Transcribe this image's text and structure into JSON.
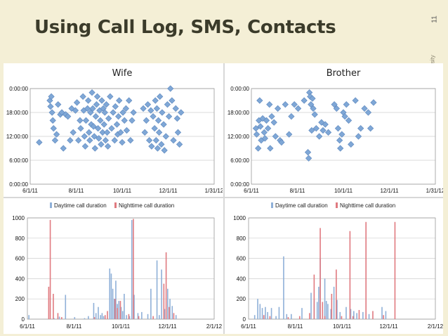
{
  "slide": {
    "title": "Using Call Log, SMS, Contacts",
    "page_number": "11",
    "side_text": "on University"
  },
  "colors": {
    "background": "#f4efd6",
    "point": "#7fa7d6",
    "point_edge": "#5b86bd",
    "daytime": "#8fb0d8",
    "nighttime": "#e07a80",
    "grid": "#cfcfcf"
  },
  "chart_data": [
    {
      "id": "wife-scatter",
      "type": "scatter",
      "title": "Wife",
      "x_ticks": [
        "6/1/11",
        "8/1/11",
        "10/1/11",
        "12/1/11",
        "1/31/12"
      ],
      "xlim": [
        0,
        244
      ],
      "y_ticks": [
        "0:00:00",
        "18:00:00",
        "12:00:00",
        "6:00:00",
        "0:00:00"
      ],
      "ylim_hours": [
        0,
        24
      ],
      "y_axis_inverted_label_top": true,
      "grid": true,
      "points": [
        [
          12,
          10.5
        ],
        [
          26,
          21
        ],
        [
          27,
          19.5
        ],
        [
          28,
          22
        ],
        [
          29,
          18
        ],
        [
          30,
          16
        ],
        [
          31,
          14
        ],
        [
          33,
          11
        ],
        [
          35,
          12.5
        ],
        [
          37,
          20
        ],
        [
          40,
          17.5
        ],
        [
          42,
          18
        ],
        [
          44,
          9
        ],
        [
          47,
          17.5
        ],
        [
          50,
          17
        ],
        [
          53,
          11
        ],
        [
          55,
          19
        ],
        [
          57,
          13
        ],
        [
          60,
          18.5
        ],
        [
          62,
          20.5
        ],
        [
          64,
          11
        ],
        [
          66,
          16
        ],
        [
          67,
          14
        ],
        [
          70,
          22
        ],
        [
          71,
          18.5
        ],
        [
          72,
          12
        ],
        [
          73,
          9.5
        ],
        [
          74,
          16
        ],
        [
          76,
          19
        ],
        [
          77,
          21
        ],
        [
          78,
          13
        ],
        [
          79,
          11
        ],
        [
          80,
          18
        ],
        [
          81,
          15
        ],
        [
          82,
          23
        ],
        [
          83,
          19
        ],
        [
          84,
          14.5
        ],
        [
          85,
          12
        ],
        [
          86,
          9
        ],
        [
          87,
          17
        ],
        [
          88,
          20
        ],
        [
          89,
          22
        ],
        [
          90,
          14
        ],
        [
          91,
          11.5
        ],
        [
          92,
          18.5
        ],
        [
          93,
          16
        ],
        [
          94,
          10
        ],
        [
          95,
          21
        ],
        [
          96,
          13
        ],
        [
          97,
          19
        ],
        [
          98,
          15
        ],
        [
          99,
          18
        ],
        [
          100,
          11
        ],
        [
          101,
          20
        ],
        [
          102,
          13
        ],
        [
          103,
          9.5
        ],
        [
          104,
          16.5
        ],
        [
          106,
          22
        ],
        [
          108,
          14
        ],
        [
          110,
          18
        ],
        [
          112,
          11
        ],
        [
          113,
          19.5
        ],
        [
          115,
          15
        ],
        [
          116,
          12.5
        ],
        [
          117,
          17
        ],
        [
          118,
          21
        ],
        [
          120,
          13
        ],
        [
          122,
          10.5
        ],
        [
          123,
          18
        ],
        [
          125,
          16
        ],
        [
          127,
          19
        ],
        [
          128,
          13.5
        ],
        [
          131,
          21
        ],
        [
          133,
          11
        ],
        [
          135,
          16
        ],
        [
          137,
          18
        ],
        [
          150,
          19
        ],
        [
          152,
          13
        ],
        [
          154,
          16
        ],
        [
          156,
          20
        ],
        [
          158,
          11
        ],
        [
          160,
          18.5
        ],
        [
          161,
          9.5
        ],
        [
          163,
          17
        ],
        [
          165,
          14
        ],
        [
          166,
          21
        ],
        [
          167,
          11
        ],
        [
          168,
          19
        ],
        [
          169,
          9
        ],
        [
          170,
          16
        ],
        [
          171,
          13
        ],
        [
          172,
          22
        ],
        [
          174,
          10
        ],
        [
          175,
          18
        ],
        [
          177,
          15
        ],
        [
          178,
          8.5
        ],
        [
          180,
          12
        ],
        [
          182,
          20
        ],
        [
          184,
          17
        ],
        [
          186,
          24
        ],
        [
          188,
          21
        ],
        [
          190,
          11
        ],
        [
          193,
          19
        ],
        [
          195,
          16.5
        ],
        [
          196,
          13
        ],
        [
          198,
          10
        ],
        [
          200,
          18
        ]
      ]
    },
    {
      "id": "brother-scatter",
      "type": "scatter",
      "title": "Brother",
      "x_ticks": [
        "6/1/11",
        "8/1/11",
        "10/1/11",
        "12/1/11",
        "1/31/12"
      ],
      "xlim": [
        0,
        244
      ],
      "y_ticks": [
        "0:00:00",
        "18:00:00",
        "12:00:00",
        "6:00:00",
        "0:00:00"
      ],
      "ylim_hours": [
        0,
        24
      ],
      "grid": true,
      "points": [
        [
          6,
          14
        ],
        [
          7,
          12.5
        ],
        [
          9,
          9
        ],
        [
          10,
          16
        ],
        [
          11,
          21
        ],
        [
          12,
          14.5
        ],
        [
          13,
          11
        ],
        [
          15,
          16.5
        ],
        [
          17,
          13
        ],
        [
          18,
          11.5
        ],
        [
          20,
          16
        ],
        [
          22,
          14
        ],
        [
          24,
          20
        ],
        [
          25,
          9
        ],
        [
          27,
          17
        ],
        [
          30,
          15.5
        ],
        [
          32,
          12
        ],
        [
          35,
          19
        ],
        [
          38,
          11
        ],
        [
          40,
          10.5
        ],
        [
          45,
          20
        ],
        [
          50,
          12.5
        ],
        [
          53,
          17
        ],
        [
          57,
          20
        ],
        [
          62,
          19
        ],
        [
          70,
          21
        ],
        [
          75,
          8
        ],
        [
          76,
          6.5
        ],
        [
          77,
          23
        ],
        [
          78,
          22
        ],
        [
          79,
          20
        ],
        [
          80,
          13.5
        ],
        [
          81,
          21.5
        ],
        [
          82,
          19
        ],
        [
          84,
          17.5
        ],
        [
          86,
          14
        ],
        [
          90,
          12
        ],
        [
          93,
          15.5
        ],
        [
          95,
          13.5
        ],
        [
          98,
          15
        ],
        [
          102,
          13
        ],
        [
          110,
          20
        ],
        [
          113,
          19
        ],
        [
          115,
          14
        ],
        [
          117,
          11
        ],
        [
          118,
          9
        ],
        [
          120,
          12.5
        ],
        [
          122,
          18
        ],
        [
          124,
          17
        ],
        [
          126,
          20
        ],
        [
          129,
          16
        ],
        [
          132,
          10
        ],
        [
          138,
          21
        ],
        [
          142,
          12
        ],
        [
          145,
          14
        ],
        [
          150,
          19
        ],
        [
          155,
          18
        ],
        [
          158,
          14
        ],
        [
          162,
          20.5
        ]
      ]
    },
    {
      "id": "wife-durations",
      "type": "bar",
      "legend": [
        "Daytime call duration",
        "Nighttime call duration"
      ],
      "x_ticks": [
        "6/1/11",
        "8/1/11",
        "10/1/11",
        "12/1/11",
        "2/1/12"
      ],
      "xlim": [
        0,
        245
      ],
      "ylim": [
        0,
        1000
      ],
      "y_ticks": [
        0,
        200,
        400,
        600,
        800,
        1000
      ],
      "grid": true,
      "series": [
        {
          "name": "Daytime call duration",
          "points": [
            [
              2,
              40
            ],
            [
              35,
              10
            ],
            [
              42,
              25
            ],
            [
              50,
              240
            ],
            [
              62,
              20
            ],
            [
              75,
              10
            ],
            [
              80,
              30
            ],
            [
              87,
              160
            ],
            [
              90,
              60
            ],
            [
              93,
              120
            ],
            [
              96,
              40
            ],
            [
              98,
              60
            ],
            [
              100,
              30
            ],
            [
              108,
              500
            ],
            [
              110,
              450
            ],
            [
              112,
              300
            ],
            [
              114,
              200
            ],
            [
              116,
              380
            ],
            [
              118,
              150
            ],
            [
              120,
              180
            ],
            [
              123,
              120
            ],
            [
              125,
              80
            ],
            [
              127,
              250
            ],
            [
              130,
              40
            ],
            [
              134,
              30
            ],
            [
              137,
              980
            ],
            [
              140,
              240
            ],
            [
              145,
              60
            ],
            [
              150,
              70
            ],
            [
              158,
              50
            ],
            [
              162,
              300
            ],
            [
              170,
              580
            ],
            [
              173,
              40
            ],
            [
              176,
              490
            ],
            [
              180,
              100
            ],
            [
              184,
              300
            ],
            [
              187,
              200
            ],
            [
              190,
              130
            ],
            [
              195,
              40
            ]
          ]
        },
        {
          "name": "Nighttime call duration",
          "points": [
            [
              28,
              320
            ],
            [
              30,
              980
            ],
            [
              34,
              250
            ],
            [
              40,
              60
            ],
            [
              45,
              20
            ],
            [
              88,
              20
            ],
            [
              102,
              40
            ],
            [
              105,
              80
            ],
            [
              115,
              200
            ],
            [
              118,
              110
            ],
            [
              122,
              180
            ],
            [
              133,
              50
            ],
            [
              139,
              990
            ],
            [
              146,
              30
            ],
            [
              165,
              30
            ],
            [
              179,
              350
            ],
            [
              182,
              660
            ],
            [
              186,
              120
            ],
            [
              192,
              60
            ]
          ]
        }
      ]
    },
    {
      "id": "brother-durations",
      "type": "bar",
      "legend": [
        "Daytime call duration",
        "Nighttime call duration"
      ],
      "x_ticks": [
        "6/1/11",
        "8/1/11",
        "10/1/11",
        "12/1/11",
        "2/1/12"
      ],
      "xlim": [
        0,
        245
      ],
      "ylim": [
        0,
        1000
      ],
      "y_ticks": [
        0,
        200,
        400,
        600,
        800,
        1000
      ],
      "grid": true,
      "series": [
        {
          "name": "Daytime call duration",
          "points": [
            [
              8,
              40
            ],
            [
              12,
              200
            ],
            [
              15,
              150
            ],
            [
              18,
              110
            ],
            [
              22,
              120
            ],
            [
              25,
              70
            ],
            [
              30,
              110
            ],
            [
              36,
              30
            ],
            [
              40,
              120
            ],
            [
              46,
              620
            ],
            [
              50,
              50
            ],
            [
              56,
              50
            ],
            [
              70,
              110
            ],
            [
              82,
              260
            ],
            [
              86,
              200
            ],
            [
              90,
              170
            ],
            [
              92,
              320
            ],
            [
              94,
              600
            ],
            [
              97,
              90
            ],
            [
              100,
              400
            ],
            [
              102,
              180
            ],
            [
              104,
              150
            ],
            [
              108,
              100
            ],
            [
              112,
              320
            ],
            [
              116,
              190
            ],
            [
              120,
              70
            ],
            [
              128,
              120
            ],
            [
              134,
              100
            ],
            [
              138,
              80
            ],
            [
              142,
              60
            ],
            [
              150,
              70
            ],
            [
              158,
              50
            ],
            [
              175,
              120
            ],
            [
              180,
              80
            ]
          ]
        },
        {
          "name": "Nighttime call duration",
          "points": [
            [
              20,
              40
            ],
            [
              28,
              30
            ],
            [
              52,
              20
            ],
            [
              67,
              30
            ],
            [
              80,
              60
            ],
            [
              86,
              440
            ],
            [
              94,
              900
            ],
            [
              97,
              170
            ],
            [
              100,
              30
            ],
            [
              109,
              250
            ],
            [
              115,
              490
            ],
            [
              122,
              30
            ],
            [
              133,
              870
            ],
            [
              137,
              30
            ],
            [
              145,
              90
            ],
            [
              154,
              960
            ],
            [
              163,
              80
            ],
            [
              177,
              40
            ],
            [
              192,
              960
            ]
          ]
        }
      ]
    }
  ]
}
